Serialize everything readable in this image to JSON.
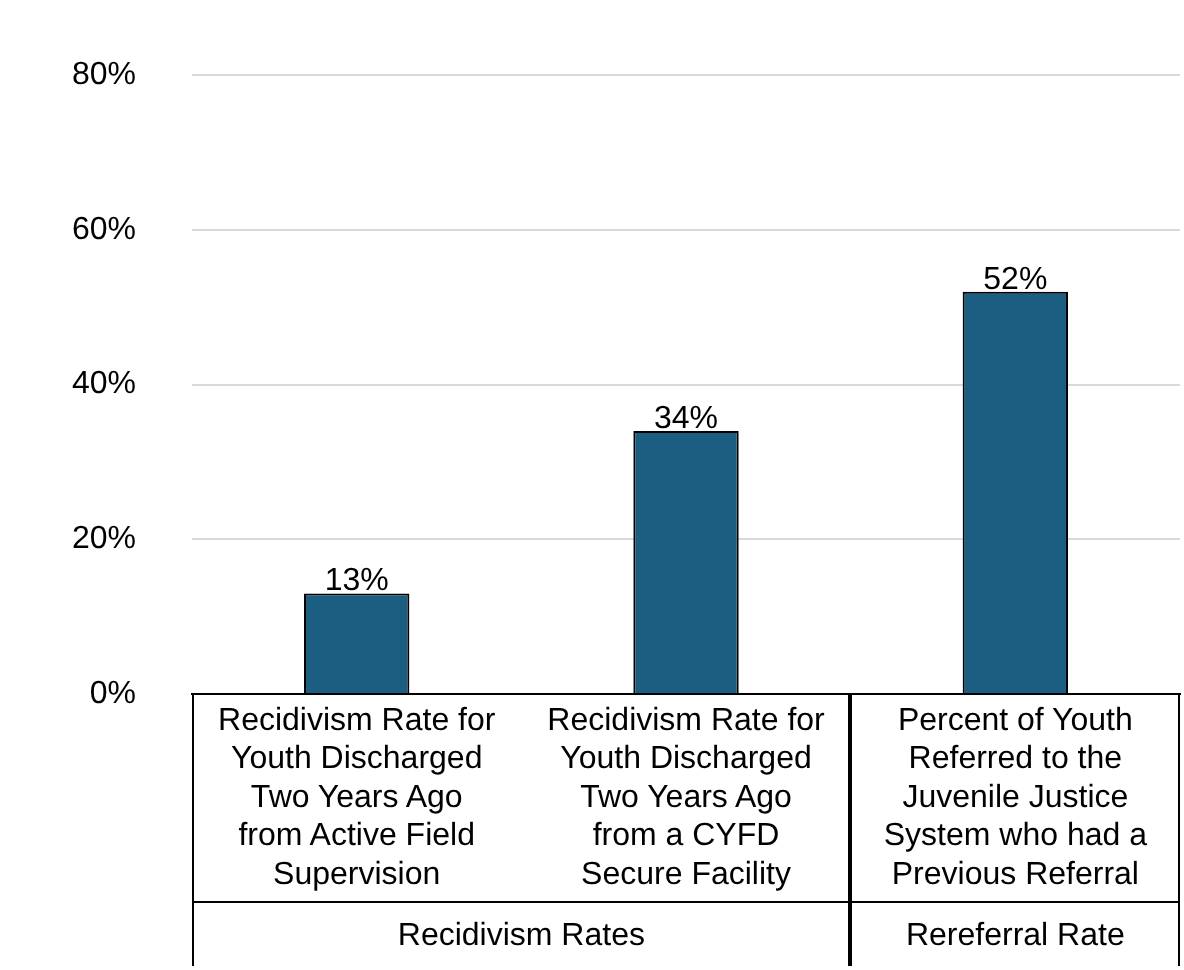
{
  "chart_data": {
    "type": "bar",
    "categories": [
      "Recidivism Rate for Youth Discharged Two Years Ago from Active Field Supervision",
      "Recidivism Rate for Youth Discharged Two Years Ago from a CYFD Secure Facility",
      "Percent of Youth Referred to the Juvenile Justice System who had a Previous Referral"
    ],
    "values": [
      13,
      34,
      52
    ],
    "color": "#1b5e82",
    "value_labels": [
      "13%",
      "34%",
      "52%"
    ],
    "ylim": [
      0,
      80
    ],
    "yticks": [
      {
        "value": 0,
        "label": "0%"
      },
      {
        "value": 20,
        "label": "20%"
      },
      {
        "value": 40,
        "label": "40%"
      },
      {
        "value": 60,
        "label": "60%"
      },
      {
        "value": 80,
        "label": "80%"
      }
    ],
    "grid": "y",
    "legend": false,
    "annotations": [
      "Recidivism Rates",
      "Rereferral Rate"
    ]
  }
}
